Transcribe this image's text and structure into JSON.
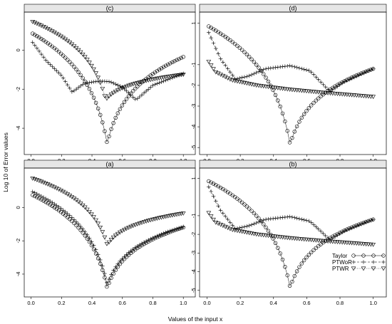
{
  "figure": {
    "xlabel": "Values of the input x",
    "ylabel": "Log 10 of Error values"
  },
  "legend": {
    "entries": [
      {
        "label": "Taylor",
        "marker": "circle",
        "line": "solid"
      },
      {
        "label": "PTWoR",
        "marker": "plus",
        "line": "dashed"
      },
      {
        "label": "PTWR",
        "marker": "triangle-down",
        "line": "dotted"
      }
    ],
    "panel": "b",
    "placement": "bottom-right"
  },
  "chart_data": [
    {
      "type": "scatter",
      "panel": "c",
      "title": "(c)",
      "xlim": [
        0,
        1
      ],
      "ylim": [
        -5.2,
        1.8
      ],
      "xticks": [
        0.0,
        0.2,
        0.4,
        0.6,
        0.8,
        1.0
      ],
      "yticks": [
        0,
        -2,
        -4
      ],
      "series": [
        {
          "marker": "circle",
          "min_x": 0.5,
          "endpoints": {
            "x0": 0.01,
            "y0": 0.85,
            "x1": 1.0,
            "y1": -0.35
          },
          "dip_value": -4.8
        },
        {
          "marker": "plus",
          "points": [
            [
              0.01,
              0.4
            ],
            [
              0.1,
              -0.55
            ],
            [
              0.2,
              -1.3
            ],
            [
              0.27,
              -2.15
            ],
            [
              0.35,
              -1.7
            ],
            [
              0.45,
              -1.58
            ],
            [
              0.52,
              -1.62
            ],
            [
              0.6,
              -1.9
            ],
            [
              0.69,
              -2.55
            ],
            [
              0.8,
              -1.8
            ],
            [
              1.0,
              -1.2
            ]
          ]
        },
        {
          "marker": "triangle-down",
          "min_x": 0.49,
          "endpoints": {
            "x0": 0.01,
            "y0": 1.45,
            "x1": 1.0,
            "y1": -1.25
          },
          "dip_value": -2.55
        }
      ]
    },
    {
      "type": "scatter",
      "panel": "d",
      "title": "(d)",
      "xlim": [
        0,
        1
      ],
      "ylim": [
        -5.2,
        1.4
      ],
      "xticks": [
        0.0,
        0.2,
        0.4,
        0.6,
        0.8,
        1.0
      ],
      "yticks": [
        1,
        -1,
        -2,
        -3,
        -4,
        -5
      ],
      "series": [
        {
          "marker": "circle",
          "min_x": 0.5,
          "endpoints": {
            "x0": 0.01,
            "y0": 0.85,
            "x1": 1.0,
            "y1": -1.2
          },
          "dip_value": -4.85
        },
        {
          "marker": "plus",
          "points": [
            [
              0.01,
              0.55
            ],
            [
              0.08,
              -0.7
            ],
            [
              0.17,
              -1.7
            ],
            [
              0.25,
              -1.55
            ],
            [
              0.35,
              -1.2
            ],
            [
              0.5,
              -1.05
            ],
            [
              0.62,
              -1.3
            ],
            [
              0.74,
              -2.3
            ],
            [
              0.82,
              -1.85
            ],
            [
              1.0,
              -1.2
            ]
          ]
        },
        {
          "marker": "triangle-down",
          "points": [
            [
              0.01,
              -0.85
            ],
            [
              0.05,
              -1.35
            ],
            [
              0.15,
              -1.75
            ],
            [
              0.3,
              -2.0
            ],
            [
              0.5,
              -2.2
            ],
            [
              0.7,
              -2.35
            ],
            [
              0.85,
              -2.45
            ],
            [
              1.0,
              -2.55
            ]
          ]
        }
      ]
    },
    {
      "type": "scatter",
      "panel": "a",
      "title": "(a)",
      "xlim": [
        0,
        1
      ],
      "ylim": [
        -5.2,
        2.2
      ],
      "xticks": [
        0.0,
        0.2,
        0.4,
        0.6,
        0.8,
        1.0
      ],
      "yticks": [
        0,
        -2,
        -4
      ],
      "series": [
        {
          "marker": "circle",
          "min_x": 0.5,
          "endpoints": {
            "x0": 0.01,
            "y0": 0.75,
            "x1": 1.0,
            "y1": -1.2
          },
          "dip_value": -4.85
        },
        {
          "marker": "plus",
          "min_x": 0.5,
          "endpoints": {
            "x0": 0.01,
            "y0": 0.95,
            "x1": 1.0,
            "y1": -1.15
          },
          "dip_value": -4.6
        },
        {
          "marker": "triangle-down",
          "min_x": 0.5,
          "endpoints": {
            "x0": 0.01,
            "y0": 1.75,
            "x1": 1.0,
            "y1": -0.35
          },
          "dip_value": -2.25
        }
      ]
    },
    {
      "type": "scatter",
      "panel": "b",
      "title": "(b)",
      "xlim": [
        0,
        1
      ],
      "ylim": [
        -5.2,
        1.4
      ],
      "xticks": [
        0.0,
        0.2,
        0.4,
        0.6,
        0.8,
        1.0
      ],
      "yticks": [
        1,
        -1,
        -2,
        -3,
        -4,
        -5
      ],
      "series": [
        {
          "marker": "circle",
          "min_x": 0.5,
          "endpoints": {
            "x0": 0.01,
            "y0": 0.85,
            "x1": 1.0,
            "y1": -1.2
          },
          "dip_value": -4.85
        },
        {
          "marker": "plus",
          "points": [
            [
              0.01,
              0.55
            ],
            [
              0.08,
              -0.7
            ],
            [
              0.17,
              -1.7
            ],
            [
              0.25,
              -1.55
            ],
            [
              0.35,
              -1.2
            ],
            [
              0.5,
              -1.05
            ],
            [
              0.62,
              -1.3
            ],
            [
              0.74,
              -2.3
            ],
            [
              0.82,
              -1.85
            ],
            [
              1.0,
              -1.2
            ]
          ]
        },
        {
          "marker": "triangle-down",
          "points": [
            [
              0.01,
              -0.85
            ],
            [
              0.05,
              -1.35
            ],
            [
              0.15,
              -1.75
            ],
            [
              0.3,
              -2.0
            ],
            [
              0.5,
              -2.2
            ],
            [
              0.7,
              -2.35
            ],
            [
              0.85,
              -2.45
            ],
            [
              1.0,
              -2.55
            ]
          ]
        }
      ]
    }
  ]
}
